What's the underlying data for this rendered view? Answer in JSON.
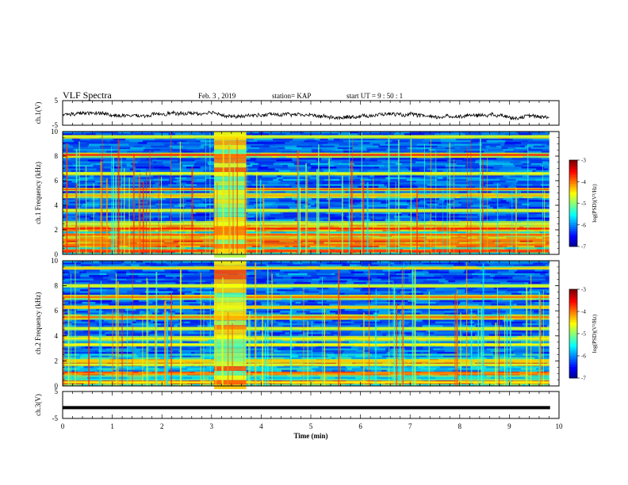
{
  "header": {
    "title": "VLF Spectra",
    "date": "Feb. 3 , 2019",
    "station": "station= KAP",
    "start": "start  UT  =   9 : 50 : 1"
  },
  "chart_data": [
    {
      "type": "line",
      "panel": "ch1-waveform",
      "ylabel": "ch.1(V)",
      "ylim": [
        -5,
        5
      ],
      "yticks": [
        -5,
        5
      ],
      "xlim": [
        0,
        10
      ],
      "description_series": "noisy voltage trace oscillating roughly between -3 and 1 V",
      "series": [
        {
          "color": "#000000"
        }
      ]
    },
    {
      "type": "heatmap",
      "panel": "ch1-spectrogram",
      "ylabel": "ch.1 Frequency (kHz)",
      "ylim": [
        0,
        10
      ],
      "yticks": [
        0,
        2,
        4,
        6,
        8,
        10
      ],
      "xlim": [
        0,
        10
      ],
      "colorbar": {
        "label": "log(PSD)(V²/Hz)",
        "range": [
          -7,
          -3
        ],
        "ticks": [
          -3,
          -4,
          -5,
          -6,
          -7
        ]
      },
      "bright_block_min": [
        3.05,
        3.7
      ],
      "bright_bands_khz": [
        0.3,
        0.8,
        1.2,
        1.6,
        2.1,
        2.5,
        3.6,
        4.8,
        5.3,
        6.6,
        8.1,
        9.6
      ]
    },
    {
      "type": "heatmap",
      "panel": "ch2-spectrogram",
      "ylabel": "ch.2 Frequency (kHz)",
      "ylim": [
        0,
        10
      ],
      "yticks": [
        0,
        2,
        4,
        6,
        8,
        10
      ],
      "xlim": [
        0,
        10
      ],
      "colorbar": {
        "label": "log(PSD)(V²/Hz)",
        "range": [
          -7,
          -3
        ],
        "ticks": [
          -3,
          -4,
          -5,
          -6,
          -7
        ]
      },
      "bright_block_min": [
        3.05,
        3.7
      ],
      "bright_bands_khz": [
        0.3,
        1.0,
        1.7,
        2.0,
        3.3,
        3.8,
        4.6,
        5.5,
        6.3,
        7.1,
        8.0,
        9.4
      ]
    },
    {
      "type": "line",
      "panel": "ch3-waveform",
      "ylabel": "ch.3(V)",
      "ylim": [
        -5,
        5
      ],
      "yticks": [
        -5,
        5
      ],
      "xlim": [
        0,
        10
      ],
      "xlabel": "Time  (min)",
      "xticks": [
        0,
        1,
        2,
        3,
        4,
        5,
        6,
        7,
        8,
        9,
        10
      ],
      "series": [
        {
          "color": "#000000",
          "value": -1.0
        }
      ]
    }
  ]
}
